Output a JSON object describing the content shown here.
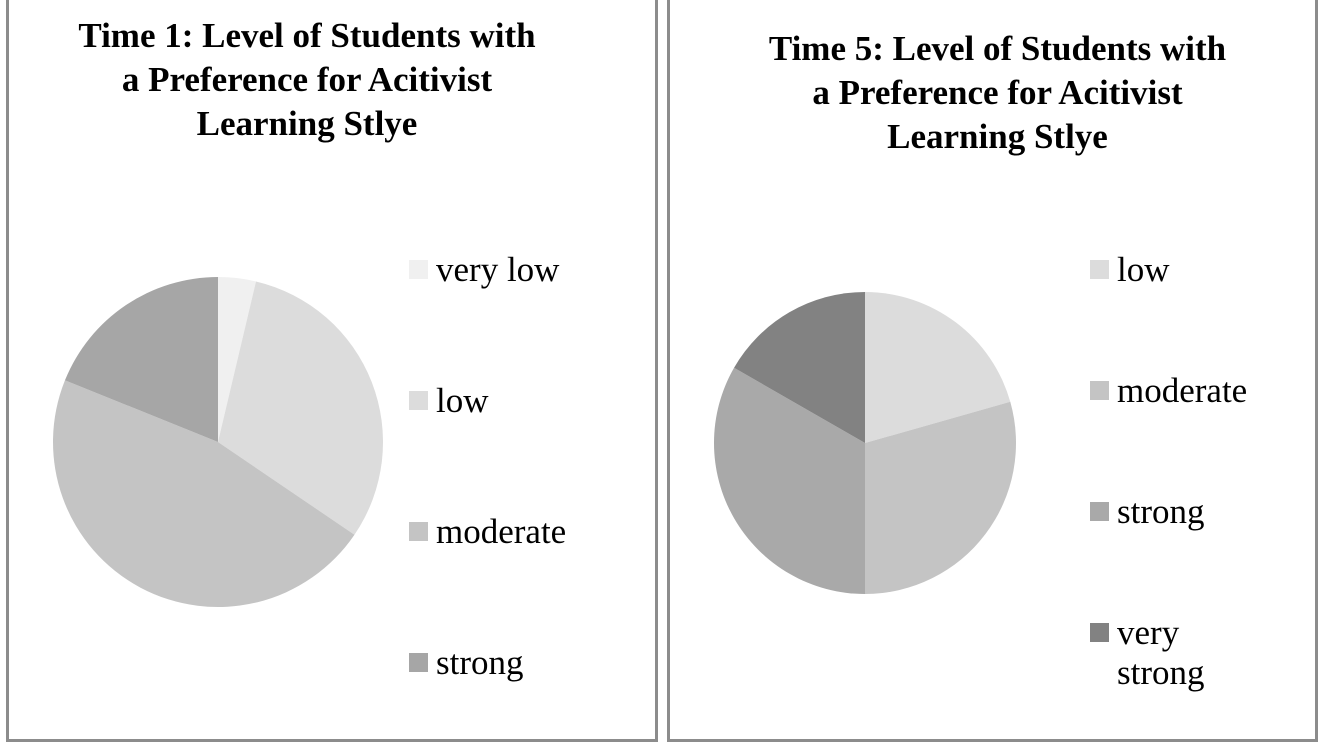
{
  "chart_data": [
    {
      "type": "pie",
      "title": "Time 1: Level of Students with\na Preference for Acitivist\nLearning Stlye",
      "categories": [
        "very low",
        "low",
        "moderate",
        "strong"
      ],
      "values": [
        3.7,
        30.8,
        46.6,
        18.9
      ],
      "colors": [
        "#f0f0f0",
        "#dcdcdc",
        "#c4c4c4",
        "#a6a6a6"
      ],
      "legend_position": "right"
    },
    {
      "type": "pie",
      "title": "Time 5: Level of Students with\na Preference for Acitivist\nLearning Stlye",
      "categories": [
        "low",
        "moderate",
        "strong",
        "very strong"
      ],
      "values": [
        20.6,
        29.4,
        33.3,
        16.7
      ],
      "colors": [
        "#dcdcdc",
        "#c4c4c4",
        "#a9a9a9",
        "#828282"
      ],
      "legend_position": "right"
    }
  ]
}
